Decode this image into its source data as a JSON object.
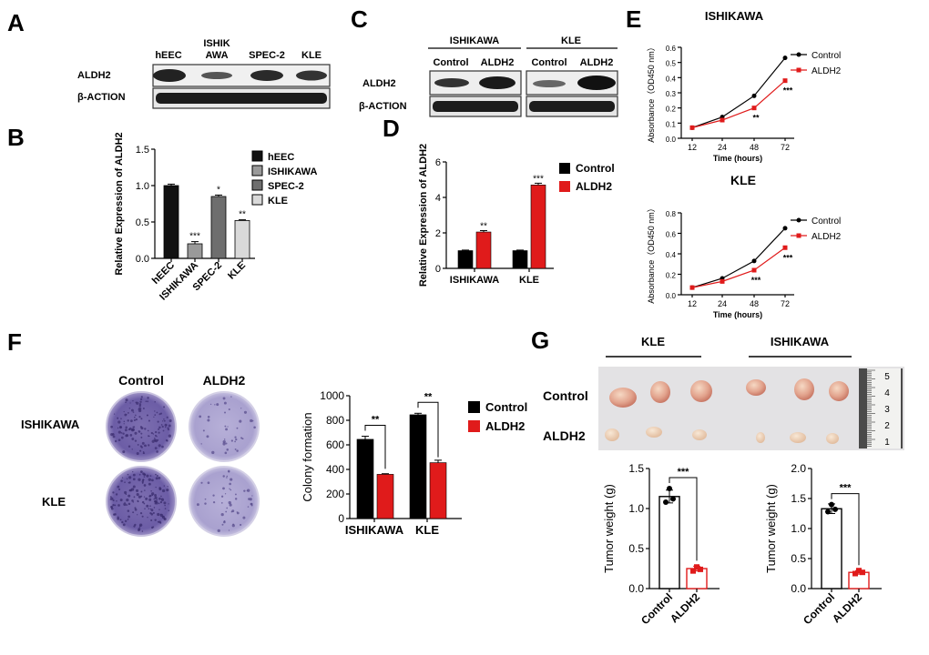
{
  "panels": {
    "A": {
      "letter": "A",
      "lanes": [
        "hEEC",
        "ISHIK\nAWA",
        "SPEC-2",
        "KLE"
      ],
      "rows": [
        "ALDH2",
        "β-ACTION"
      ]
    },
    "B": {
      "letter": "B",
      "legend": [
        "hEEC",
        "ISHIKAWA",
        "SPEC-2",
        "KLE"
      ],
      "colors": [
        "#111111",
        "#9a9a9a",
        "#6e6e6e",
        "#d9d9d9"
      ]
    },
    "C": {
      "letter": "C",
      "groups": [
        "ISHIKAWA",
        "KLE"
      ],
      "lanes": [
        "Control",
        "ALDH2",
        "Control",
        "ALDH2"
      ],
      "rows": [
        "ALDH2",
        "β-ACTION"
      ]
    },
    "D": {
      "letter": "D",
      "legend": [
        "Control",
        "ALDH2"
      ]
    },
    "E": {
      "letter": "E",
      "title1": "ISHIKAWA",
      "title2": "KLE",
      "legend": [
        "Control",
        "ALDH2"
      ]
    },
    "F": {
      "letter": "F",
      "col_labels": [
        "Control",
        "ALDH2"
      ],
      "row_labels": [
        "ISHIKAWA",
        "KLE"
      ],
      "legend": [
        "Control",
        "ALDH2"
      ]
    },
    "G": {
      "letter": "G",
      "group_labels": [
        "KLE",
        "ISHIKAWA"
      ],
      "row_labels": [
        "Control",
        "ALDH2"
      ],
      "ruler_numbers": [
        "5",
        "4",
        "3",
        "2",
        "1"
      ]
    }
  },
  "colors": {
    "control": "#000000",
    "aldh2": "#e01b1b",
    "plate": "#8c7fb8"
  },
  "chart_data": [
    {
      "id": "B",
      "type": "bar",
      "categories": [
        "hEEC",
        "ISHIKAWA",
        "SPEC-2",
        "KLE"
      ],
      "values": [
        1.0,
        0.2,
        0.85,
        0.52
      ],
      "errors": [
        0.02,
        0.03,
        0.02,
        0.01
      ],
      "significance": [
        "",
        "***",
        "*",
        "**"
      ],
      "ylabel": "Relative Expression of ALDH2",
      "ylim": [
        0,
        1.5
      ],
      "yticks": [
        "0.0",
        "0.5",
        "1.0",
        "1.5"
      ]
    },
    {
      "id": "D",
      "type": "bar",
      "categories": [
        "ISHIKAWA",
        "KLE"
      ],
      "series": [
        {
          "name": "Control",
          "values": [
            1.0,
            1.0
          ],
          "errors": [
            0.03,
            0.03
          ]
        },
        {
          "name": "ALDH2",
          "values": [
            2.05,
            4.7
          ],
          "errors": [
            0.08,
            0.1
          ]
        }
      ],
      "significance": [
        "**",
        "***"
      ],
      "ylabel": "Relative Expression of ALDH2",
      "ylim": [
        0,
        6
      ],
      "yticks": [
        "0",
        "2",
        "4",
        "6"
      ]
    },
    {
      "id": "E1",
      "type": "line",
      "title": "ISHIKAWA",
      "x": [
        12,
        24,
        48,
        72
      ],
      "xticks": [
        "12",
        "24",
        "48",
        "72"
      ],
      "series": [
        {
          "name": "Control",
          "values": [
            0.07,
            0.14,
            0.28,
            0.53
          ]
        },
        {
          "name": "ALDH2",
          "values": [
            0.07,
            0.12,
            0.2,
            0.38
          ]
        }
      ],
      "significance": [
        "",
        "",
        "**",
        "***"
      ],
      "xlabel": "Time (hours)",
      "ylabel": "Absorbance（OD450 nm）",
      "ylim": [
        0,
        0.6
      ],
      "yticks": [
        "0.0",
        "0.1",
        "0.2",
        "0.3",
        "0.4",
        "0.5",
        "0.6"
      ]
    },
    {
      "id": "E2",
      "type": "line",
      "title": "KLE",
      "x": [
        12,
        24,
        48,
        72
      ],
      "xticks": [
        "12",
        "24",
        "48",
        "72"
      ],
      "series": [
        {
          "name": "Control",
          "values": [
            0.07,
            0.16,
            0.33,
            0.65
          ]
        },
        {
          "name": "ALDH2",
          "values": [
            0.07,
            0.13,
            0.24,
            0.46
          ]
        }
      ],
      "significance": [
        "",
        "",
        "***",
        "***"
      ],
      "xlabel": "Time (hours)",
      "ylabel": "Absorbance（OD450 nm）",
      "ylim": [
        0,
        0.8
      ],
      "yticks": [
        "0.0",
        "0.2",
        "0.4",
        "0.6",
        "0.8"
      ]
    },
    {
      "id": "F",
      "type": "bar",
      "categories": [
        "ISHIKAWA",
        "KLE"
      ],
      "series": [
        {
          "name": "Control",
          "values": [
            645,
            845
          ],
          "errors": [
            25,
            12
          ]
        },
        {
          "name": "ALDH2",
          "values": [
            360,
            455
          ],
          "errors": [
            5,
            20
          ]
        }
      ],
      "significance": [
        "**",
        "**"
      ],
      "ylabel": "Colony formation",
      "ylim": [
        0,
        1000
      ],
      "yticks": [
        "0",
        "200",
        "400",
        "600",
        "800",
        "1000"
      ]
    },
    {
      "id": "G1",
      "type": "bar",
      "categories": [
        "Control",
        "ALDH2"
      ],
      "values": [
        1.15,
        0.25
      ],
      "errors": [
        0.08,
        0.03
      ],
      "points": [
        [
          1.25,
          1.08,
          1.12
        ],
        [
          0.27,
          0.22,
          0.24
        ]
      ],
      "significance": "***",
      "ylabel": "Tumor weight (g)",
      "ylim": [
        0,
        1.5
      ],
      "yticks": [
        "0.0",
        "0.5",
        "1.0",
        "1.5"
      ]
    },
    {
      "id": "G2",
      "type": "bar",
      "categories": [
        "Control",
        "ALDH2"
      ],
      "values": [
        1.33,
        0.27
      ],
      "errors": [
        0.08,
        0.03
      ],
      "points": [
        [
          1.4,
          1.28,
          1.32
        ],
        [
          0.3,
          0.25,
          0.27
        ]
      ],
      "significance": "***",
      "ylabel": "Tumor weight (g)",
      "ylim": [
        0,
        2.0
      ],
      "yticks": [
        "0.0",
        "0.5",
        "1.0",
        "1.5",
        "2.0"
      ]
    }
  ]
}
